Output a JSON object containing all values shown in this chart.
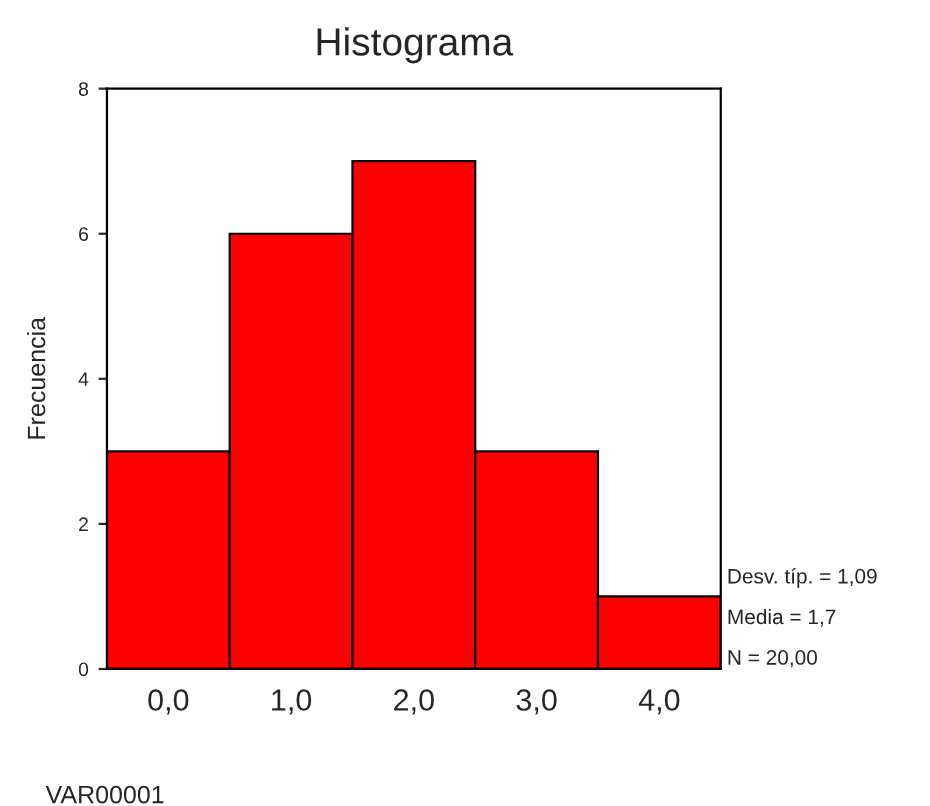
{
  "chart_data": {
    "type": "histogram",
    "title": "Histograma",
    "xlabel": "VAR00001",
    "ylabel": "Frecuencia",
    "bins": [
      -0.5,
      0.5,
      1.5,
      2.5,
      3.5,
      4.5
    ],
    "values": [
      3,
      6,
      7,
      3,
      1
    ],
    "color": "#ff0000",
    "xlim": [
      -0.5,
      4.5
    ],
    "xticks": [
      {
        "value": 0,
        "label": "0,0"
      },
      {
        "value": 1,
        "label": "1,0"
      },
      {
        "value": 2,
        "label": "2,0"
      },
      {
        "value": 3,
        "label": "3,0"
      },
      {
        "value": 4,
        "label": "4,0"
      }
    ],
    "ylim": [
      0,
      8
    ],
    "yticks": [
      0,
      2,
      4,
      6,
      8
    ],
    "annotations": [
      "Desv. típ. = 1,09",
      "Media = 1,7",
      "N = 20,00"
    ]
  }
}
